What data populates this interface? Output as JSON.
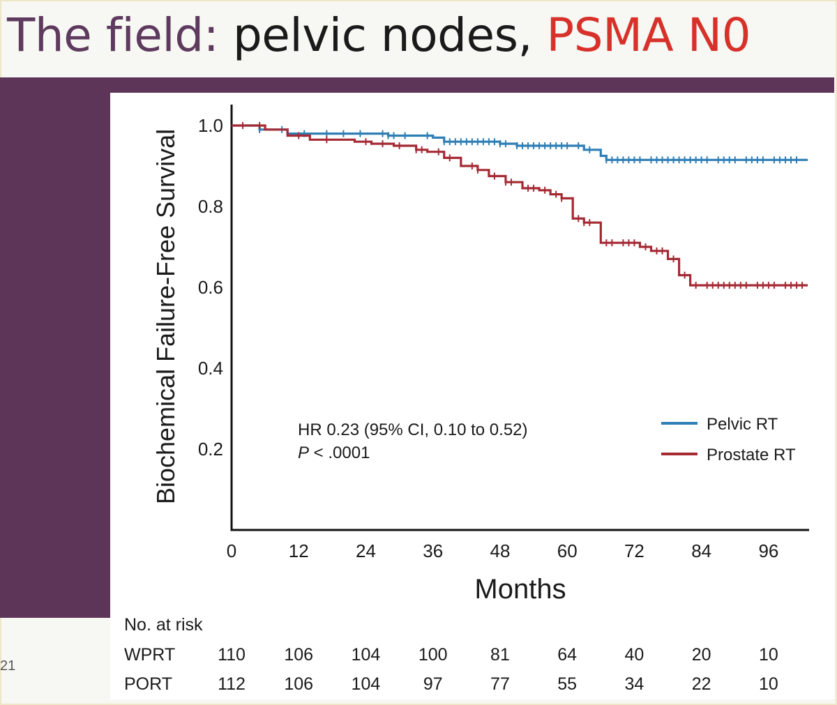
{
  "slide": {
    "title_part1": "The field:",
    "title_part2": " pelvic nodes,",
    "title_part3": " PSMA N0",
    "footer_number": "21"
  },
  "colors": {
    "purple": "#5d3558",
    "pelvic": "#2f7fb5",
    "prostate": "#a52a34",
    "title_red": "#d7312a"
  },
  "chart_data": {
    "type": "line",
    "subtype": "kaplan-meier",
    "xlabel": "Months",
    "ylabel": "Biochemical Failure-Free Survival",
    "x_ticks": [
      "0",
      "12",
      "24",
      "36",
      "48",
      "60",
      "72",
      "84",
      "96"
    ],
    "y_ticks": [
      "0.2",
      "0.4",
      "0.6",
      "0.8",
      "1.0"
    ],
    "xlim": [
      0,
      103
    ],
    "ylim": [
      0,
      1.02
    ],
    "grid": false,
    "legend_position": "right",
    "annotation": {
      "hr": "HR 0.23 (95% CI, 0.10 to 0.52)",
      "p_label": "P",
      "p_value": " < .0001"
    },
    "series": [
      {
        "name": "Pelvic RT",
        "color": "#2f7fb5",
        "steps": [
          [
            0,
            1.0
          ],
          [
            5,
            0.99
          ],
          [
            10,
            0.98
          ],
          [
            28,
            0.975
          ],
          [
            36,
            0.97
          ],
          [
            38,
            0.96
          ],
          [
            48,
            0.955
          ],
          [
            51,
            0.95
          ],
          [
            63,
            0.94
          ],
          [
            66,
            0.925
          ],
          [
            67,
            0.915
          ],
          [
            103,
            0.915
          ]
        ],
        "censors": [
          5,
          9,
          13,
          17,
          20,
          23,
          27,
          28,
          29,
          31,
          35,
          38,
          39,
          40,
          41,
          42,
          43,
          44,
          45,
          46,
          47,
          48,
          49,
          51,
          52,
          53,
          54,
          55,
          56,
          57,
          58,
          59,
          60,
          62,
          64,
          67,
          68,
          69,
          70,
          71,
          72,
          73,
          75,
          76,
          77,
          78,
          79,
          80,
          81,
          82,
          83,
          84,
          85,
          87,
          88,
          89,
          90,
          92,
          93,
          94,
          95,
          97,
          98,
          99,
          100,
          101
        ]
      },
      {
        "name": "Prostate RT",
        "color": "#a52a34",
        "steps": [
          [
            0,
            1.0
          ],
          [
            6,
            0.99
          ],
          [
            10,
            0.975
          ],
          [
            14,
            0.965
          ],
          [
            22,
            0.96
          ],
          [
            25,
            0.955
          ],
          [
            29,
            0.95
          ],
          [
            33,
            0.94
          ],
          [
            35,
            0.935
          ],
          [
            38,
            0.92
          ],
          [
            41,
            0.9
          ],
          [
            44,
            0.89
          ],
          [
            46,
            0.875
          ],
          [
            49,
            0.86
          ],
          [
            52,
            0.845
          ],
          [
            55,
            0.84
          ],
          [
            57,
            0.83
          ],
          [
            59,
            0.82
          ],
          [
            61,
            0.77
          ],
          [
            63,
            0.76
          ],
          [
            66,
            0.71
          ],
          [
            73,
            0.7
          ],
          [
            75,
            0.69
          ],
          [
            78,
            0.67
          ],
          [
            80,
            0.63
          ],
          [
            82,
            0.605
          ],
          [
            103,
            0.605
          ]
        ],
        "censors": [
          2,
          5,
          12,
          17,
          24,
          27,
          30,
          33,
          34,
          37,
          39,
          43,
          44,
          47,
          49,
          50,
          53,
          54,
          56,
          58,
          59,
          62,
          63,
          64,
          67,
          68,
          70,
          71,
          72,
          74,
          76,
          77,
          79,
          81,
          83,
          85,
          86,
          87,
          88,
          89,
          90,
          91,
          92,
          94,
          95,
          96,
          97,
          99,
          100,
          101,
          102
        ]
      }
    ]
  },
  "risk_table": {
    "title": "No. at risk",
    "columns_months": [
      0,
      12,
      24,
      36,
      48,
      60,
      72,
      84,
      96
    ],
    "rows": [
      {
        "label": "WPRT",
        "values": [
          "110",
          "106",
          "104",
          "100",
          "81",
          "64",
          "40",
          "20",
          "10"
        ]
      },
      {
        "label": "PORT",
        "values": [
          "112",
          "106",
          "104",
          "97",
          "77",
          "55",
          "34",
          "22",
          "10"
        ]
      }
    ]
  }
}
